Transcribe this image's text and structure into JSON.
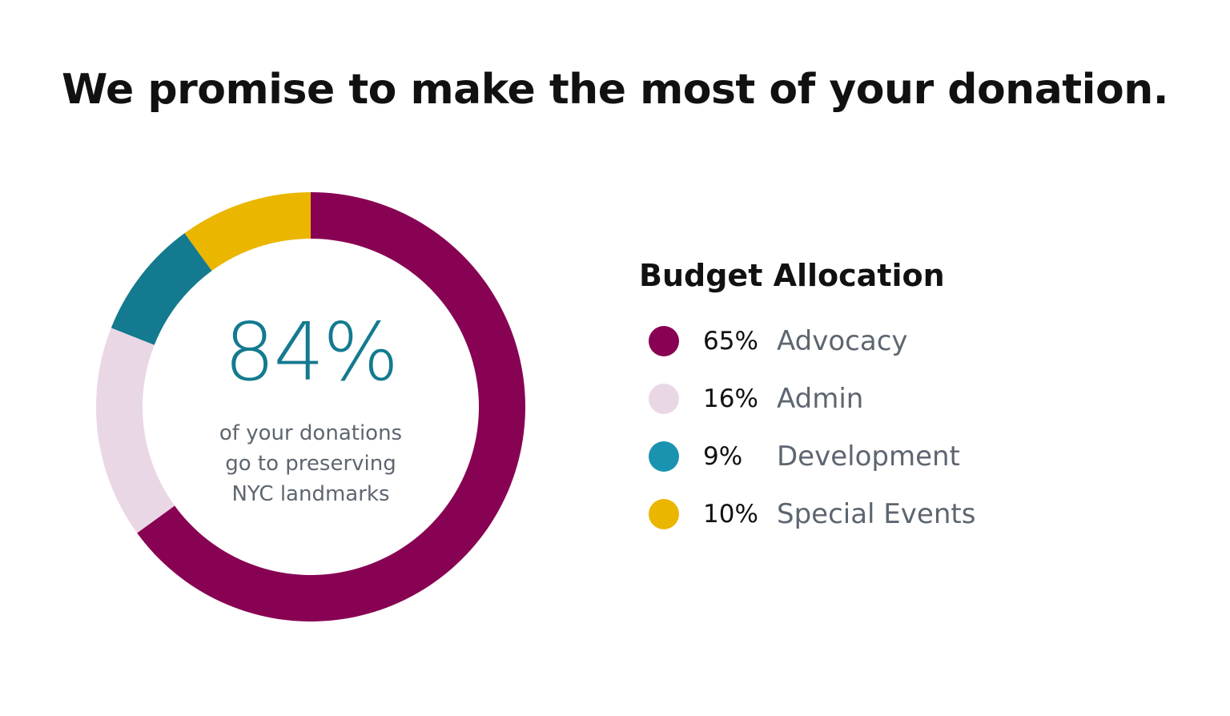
{
  "headline": "We promise to make the most of your donation.",
  "center": {
    "percent": "84%",
    "line1": "of your donations",
    "line2": "go to preserving",
    "line3": "NYC landmarks"
  },
  "legend": {
    "title": "Budget Allocation",
    "items": [
      {
        "pct": "65%",
        "label": "Advocacy",
        "color": "#880253"
      },
      {
        "pct": "16%",
        "label": "Admin",
        "color": "#ead7e6"
      },
      {
        "pct": "9%",
        "label": "Development",
        "color": "#1a93b0"
      },
      {
        "pct": "10%",
        "label": "Special Events",
        "color": "#eab600"
      }
    ]
  },
  "chart_data": {
    "type": "pie",
    "title": "Budget Allocation",
    "categories": [
      "Advocacy",
      "Admin",
      "Development",
      "Special Events"
    ],
    "values": [
      65,
      16,
      9,
      10
    ],
    "colors": [
      "#880253",
      "#ead7e6",
      "#137a8f",
      "#eab600"
    ],
    "donut": true,
    "start": "12 o'clock",
    "direction": "clockwise",
    "center_value": "84%",
    "legend_position": "right"
  }
}
